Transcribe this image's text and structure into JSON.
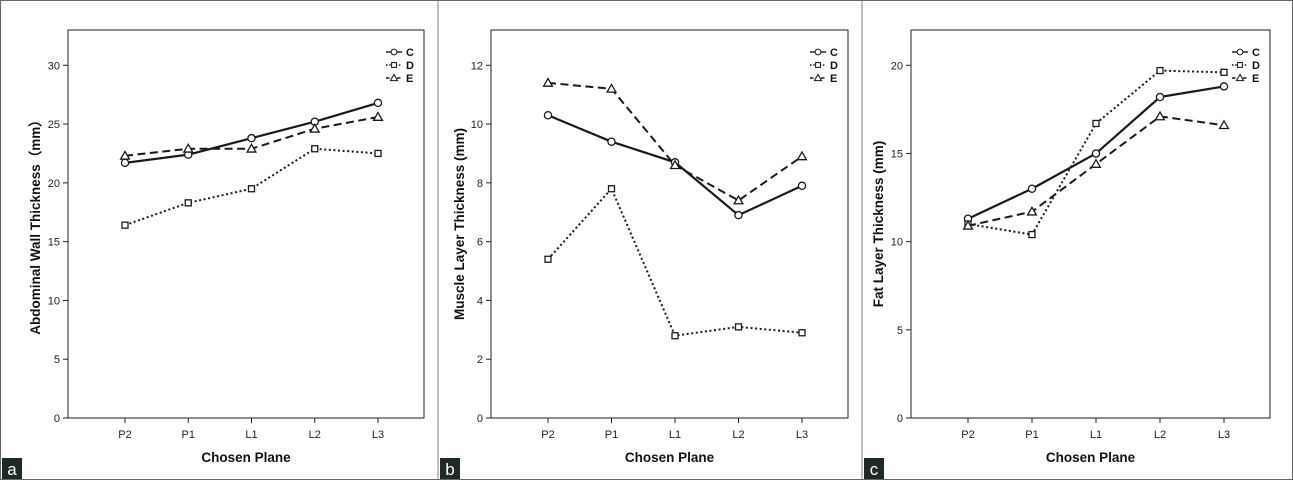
{
  "chart_data": [
    {
      "type": "line",
      "panel_label": "a",
      "categories": [
        "P2",
        "P1",
        "L1",
        "L2",
        "L3"
      ],
      "ylabel": "Abdominal Wall Thickness（mm）",
      "xlabel": "Chosen Plane",
      "ylim": [
        0,
        33
      ],
      "yticks": [
        0,
        5,
        10,
        15,
        20,
        25,
        30
      ],
      "grid": false,
      "legend_position": "top-right",
      "series": [
        {
          "name": "C",
          "style": "solid",
          "marker": "circle",
          "values": [
            21.7,
            22.4,
            23.8,
            25.2,
            26.8
          ]
        },
        {
          "name": "D",
          "style": "dotted",
          "marker": "square",
          "values": [
            16.4,
            18.3,
            19.5,
            22.9,
            22.5
          ]
        },
        {
          "name": "E",
          "style": "dashed",
          "marker": "triangle",
          "values": [
            22.3,
            22.9,
            22.9,
            24.6,
            25.6
          ]
        }
      ]
    },
    {
      "type": "line",
      "panel_label": "b",
      "categories": [
        "P2",
        "P1",
        "L1",
        "L2",
        "L3"
      ],
      "ylabel": "Muscle Layer Thickness (mm)",
      "xlabel": "Chosen Plane",
      "ylim": [
        0,
        13.2
      ],
      "yticks": [
        0,
        2,
        4,
        6,
        8,
        10,
        12
      ],
      "grid": false,
      "legend_position": "top-right",
      "series": [
        {
          "name": "C",
          "style": "solid",
          "marker": "circle",
          "values": [
            10.3,
            9.4,
            8.7,
            6.9,
            7.9
          ]
        },
        {
          "name": "D",
          "style": "dotted",
          "marker": "square",
          "values": [
            5.4,
            7.8,
            2.8,
            3.1,
            2.9
          ]
        },
        {
          "name": "E",
          "style": "dashed",
          "marker": "triangle",
          "values": [
            11.4,
            11.2,
            8.6,
            7.4,
            8.9
          ]
        }
      ]
    },
    {
      "type": "line",
      "panel_label": "c",
      "categories": [
        "P2",
        "P1",
        "L1",
        "L2",
        "L3"
      ],
      "ylabel": "Fat Layer Thickness (mm)",
      "xlabel": "Chosen Plane",
      "ylim": [
        0,
        22
      ],
      "yticks": [
        0,
        5,
        10,
        15,
        20
      ],
      "grid": false,
      "legend_position": "top-right",
      "series": [
        {
          "name": "C",
          "style": "solid",
          "marker": "circle",
          "values": [
            11.3,
            13.0,
            15.0,
            18.2,
            18.8
          ]
        },
        {
          "name": "D",
          "style": "dotted",
          "marker": "square",
          "values": [
            11.0,
            10.4,
            16.7,
            19.7,
            19.6
          ]
        },
        {
          "name": "E",
          "style": "dashed",
          "marker": "triangle",
          "values": [
            10.9,
            11.7,
            14.4,
            17.1,
            16.6
          ]
        }
      ]
    }
  ],
  "colors": {
    "line": "#1a1a1a",
    "panel_letter_bg": "#1f2a24",
    "figure_border": "#666666"
  }
}
